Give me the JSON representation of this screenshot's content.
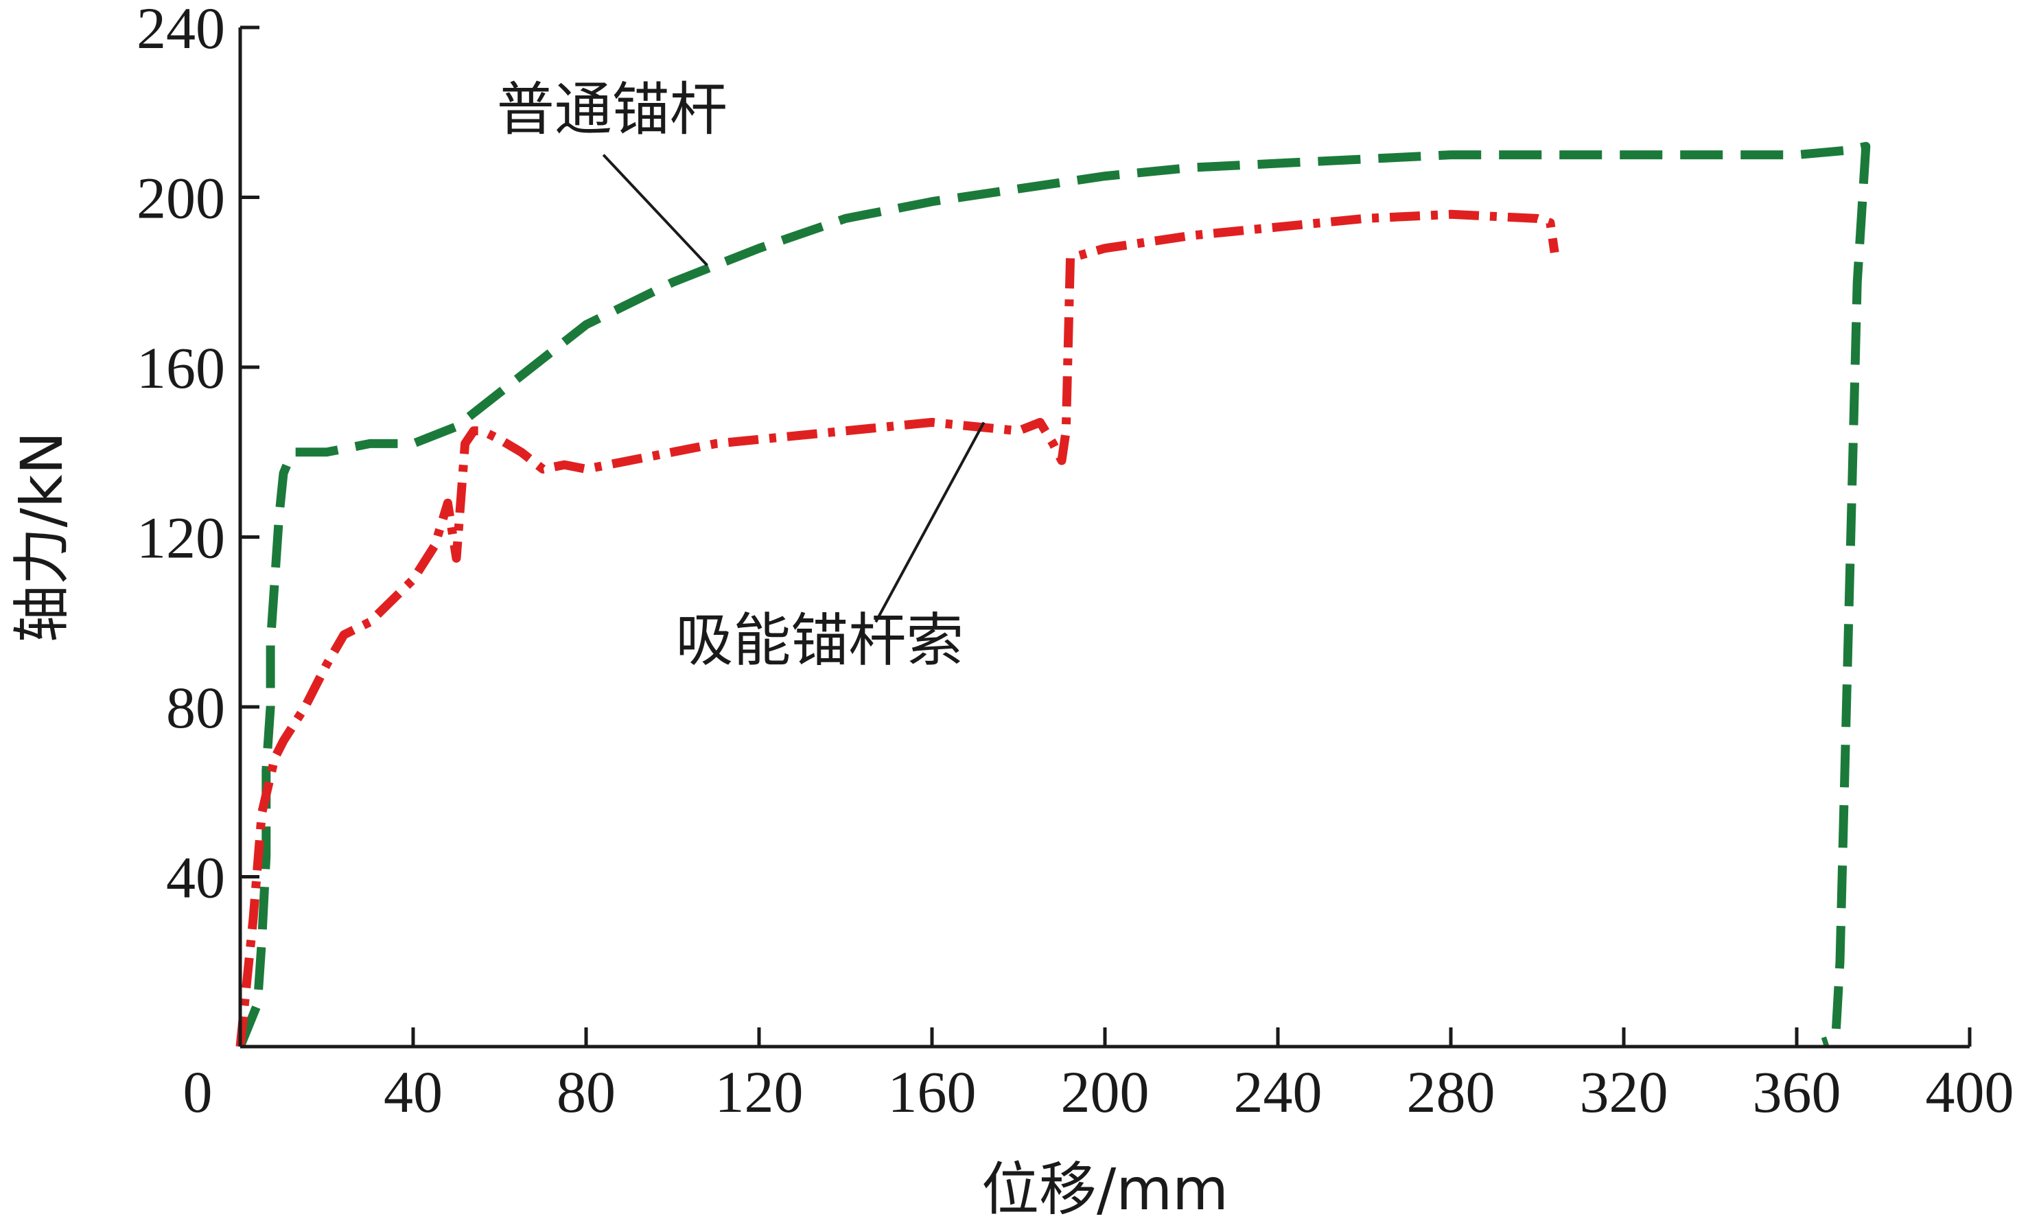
{
  "chart_data": {
    "type": "line",
    "xlabel": "位移/mm",
    "ylabel": "轴力/kN",
    "xlim": [
      0,
      400
    ],
    "ylim": [
      0,
      240
    ],
    "xticks": [
      "0",
      "40",
      "80",
      "120",
      "160",
      "200",
      "240",
      "280",
      "320",
      "360",
      "400"
    ],
    "yticks": [
      "40",
      "80",
      "120",
      "160",
      "200",
      "240"
    ],
    "grid": false,
    "series": [
      {
        "name": "普通锚杆",
        "color": "#1b7a3a",
        "style": "dashed",
        "x": [
          0,
          4,
          5,
          6,
          6,
          7,
          7,
          8,
          9,
          10,
          12,
          20,
          30,
          40,
          50,
          55,
          65,
          80,
          100,
          120,
          140,
          160,
          180,
          200,
          220,
          240,
          260,
          280,
          300,
          320,
          340,
          360,
          371,
          376,
          374,
          372,
          370,
          369,
          366
        ],
        "y": [
          0,
          10,
          25,
          45,
          65,
          80,
          95,
          110,
          125,
          135,
          140,
          140,
          142,
          142,
          146,
          150,
          158,
          170,
          180,
          188,
          195,
          199,
          202,
          205,
          207,
          208,
          209,
          210,
          210,
          210,
          210,
          210,
          211,
          212,
          180,
          100,
          20,
          2,
          1
        ]
      },
      {
        "name": "吸能锚杆索",
        "color": "#e02020",
        "style": "dash-dot",
        "x": [
          0,
          3,
          5,
          8,
          10,
          15,
          20,
          24,
          30,
          40,
          45,
          48,
          50,
          52,
          54,
          56,
          60,
          65,
          70,
          75,
          80,
          90,
          100,
          110,
          120,
          140,
          160,
          170,
          180,
          185,
          188,
          190,
          191,
          192,
          193,
          200,
          220,
          240,
          260,
          280,
          300,
          303,
          304
        ],
        "y": [
          0,
          30,
          55,
          68,
          72,
          80,
          90,
          97,
          100,
          110,
          118,
          128,
          115,
          142,
          145,
          145,
          143,
          140,
          136,
          137,
          136,
          138,
          140,
          142,
          143,
          145,
          147,
          146,
          145,
          147,
          142,
          138,
          145,
          186,
          186,
          188,
          191,
          193,
          195,
          196,
          195,
          194,
          187
        ]
      }
    ],
    "annotations": [
      {
        "text": "普通锚杆"
      },
      {
        "text": "吸能锚杆索"
      }
    ]
  }
}
